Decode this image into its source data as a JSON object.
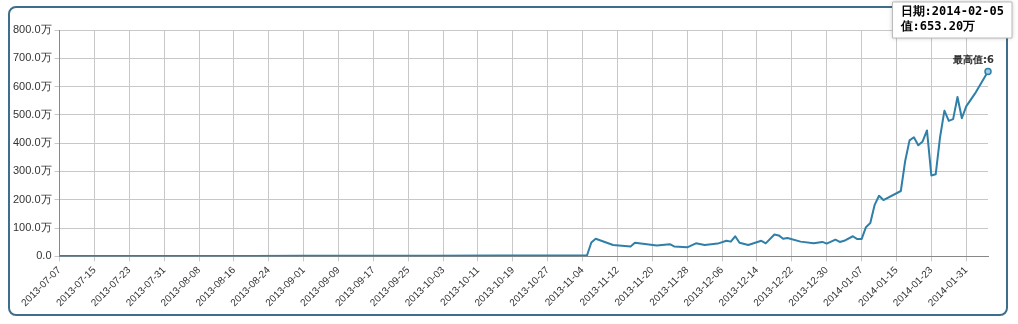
{
  "chart_data": {
    "type": "line",
    "x": [
      "2013-07-07",
      "2013-08-01",
      "2013-09-01",
      "2013-10-01",
      "2013-10-15",
      "2013-11-04",
      "2013-11-05",
      "2013-11-06",
      "2013-11-07",
      "2013-11-11",
      "2013-11-15",
      "2013-11-16",
      "2013-11-21",
      "2013-11-24",
      "2013-11-25",
      "2013-11-28",
      "2013-11-30",
      "2013-12-02",
      "2013-12-05",
      "2013-12-07",
      "2013-12-08",
      "2013-12-09",
      "2013-12-10",
      "2013-12-12",
      "2013-12-15",
      "2013-12-16",
      "2013-12-18",
      "2013-12-19",
      "2013-12-20",
      "2013-12-21",
      "2013-12-24",
      "2013-12-27",
      "2013-12-29",
      "2013-12-30",
      "2014-01-01",
      "2014-01-02",
      "2014-01-03",
      "2014-01-05",
      "2014-01-06",
      "2014-01-07",
      "2014-01-08",
      "2014-01-09",
      "2014-01-10",
      "2014-01-11",
      "2014-01-12",
      "2014-01-16",
      "2014-01-17",
      "2014-01-18",
      "2014-01-19",
      "2014-01-20",
      "2014-01-21",
      "2014-01-22",
      "2014-01-23",
      "2014-01-24",
      "2014-01-25",
      "2014-01-26",
      "2014-01-27",
      "2014-01-28",
      "2014-01-29",
      "2014-01-30",
      "2014-01-31",
      "2014-02-02",
      "2014-02-05"
    ],
    "series": [
      {
        "color": "#2f7fa8",
        "values": [
          1,
          1,
          2,
          2,
          3,
          3,
          3,
          49,
          62,
          40,
          35,
          48,
          38,
          43,
          35,
          32,
          46,
          40,
          45,
          55,
          52,
          71,
          48,
          40,
          55,
          46,
          77,
          74,
          62,
          65,
          52,
          46,
          51,
          45,
          59,
          51,
          55,
          71,
          61,
          61,
          103,
          118,
          182,
          214,
          199,
          231,
          337,
          410,
          421,
          393,
          406,
          445,
          286,
          290,
          421,
          515,
          479,
          485,
          563,
          488,
          530,
          575,
          653.2
        ]
      }
    ],
    "xlim": [
      "2013-07-07",
      "2014-02-05"
    ],
    "xticks": [
      "2013-07-07",
      "2013-07-15",
      "2013-07-23",
      "2013-07-31",
      "2013-08-08",
      "2013-08-16",
      "2013-08-24",
      "2013-09-01",
      "2013-09-09",
      "2013-09-17",
      "2013-09-25",
      "2013-10-03",
      "2013-10-11",
      "2013-10-19",
      "2013-10-27",
      "2013-11-04",
      "2013-11-12",
      "2013-11-20",
      "2013-11-28",
      "2013-12-06",
      "2013-12-14",
      "2013-12-22",
      "2013-12-30",
      "2014-01-07",
      "2014-01-15",
      "2014-01-23",
      "2014-01-31"
    ],
    "ylim": [
      0,
      800
    ],
    "yticks": [
      {
        "value": 0,
        "label": "0.0"
      },
      {
        "value": 100,
        "label": "100.0万"
      },
      {
        "value": 200,
        "label": "200.0万"
      },
      {
        "value": 300,
        "label": "300.0万"
      },
      {
        "value": 400,
        "label": "400.0万"
      },
      {
        "value": 500,
        "label": "500.0万"
      },
      {
        "value": 600,
        "label": "600.0万"
      },
      {
        "value": 700,
        "label": "700.0万"
      },
      {
        "value": 800,
        "label": "800.0万"
      }
    ],
    "grid": true,
    "legend": false,
    "marker": "none",
    "line_style": "solid",
    "annotations": [
      {
        "text": "最高值:6",
        "x": "2014-02-05",
        "y": 653.2
      },
      "日期:2014-02-05\n值:653.20万"
    ]
  }
}
